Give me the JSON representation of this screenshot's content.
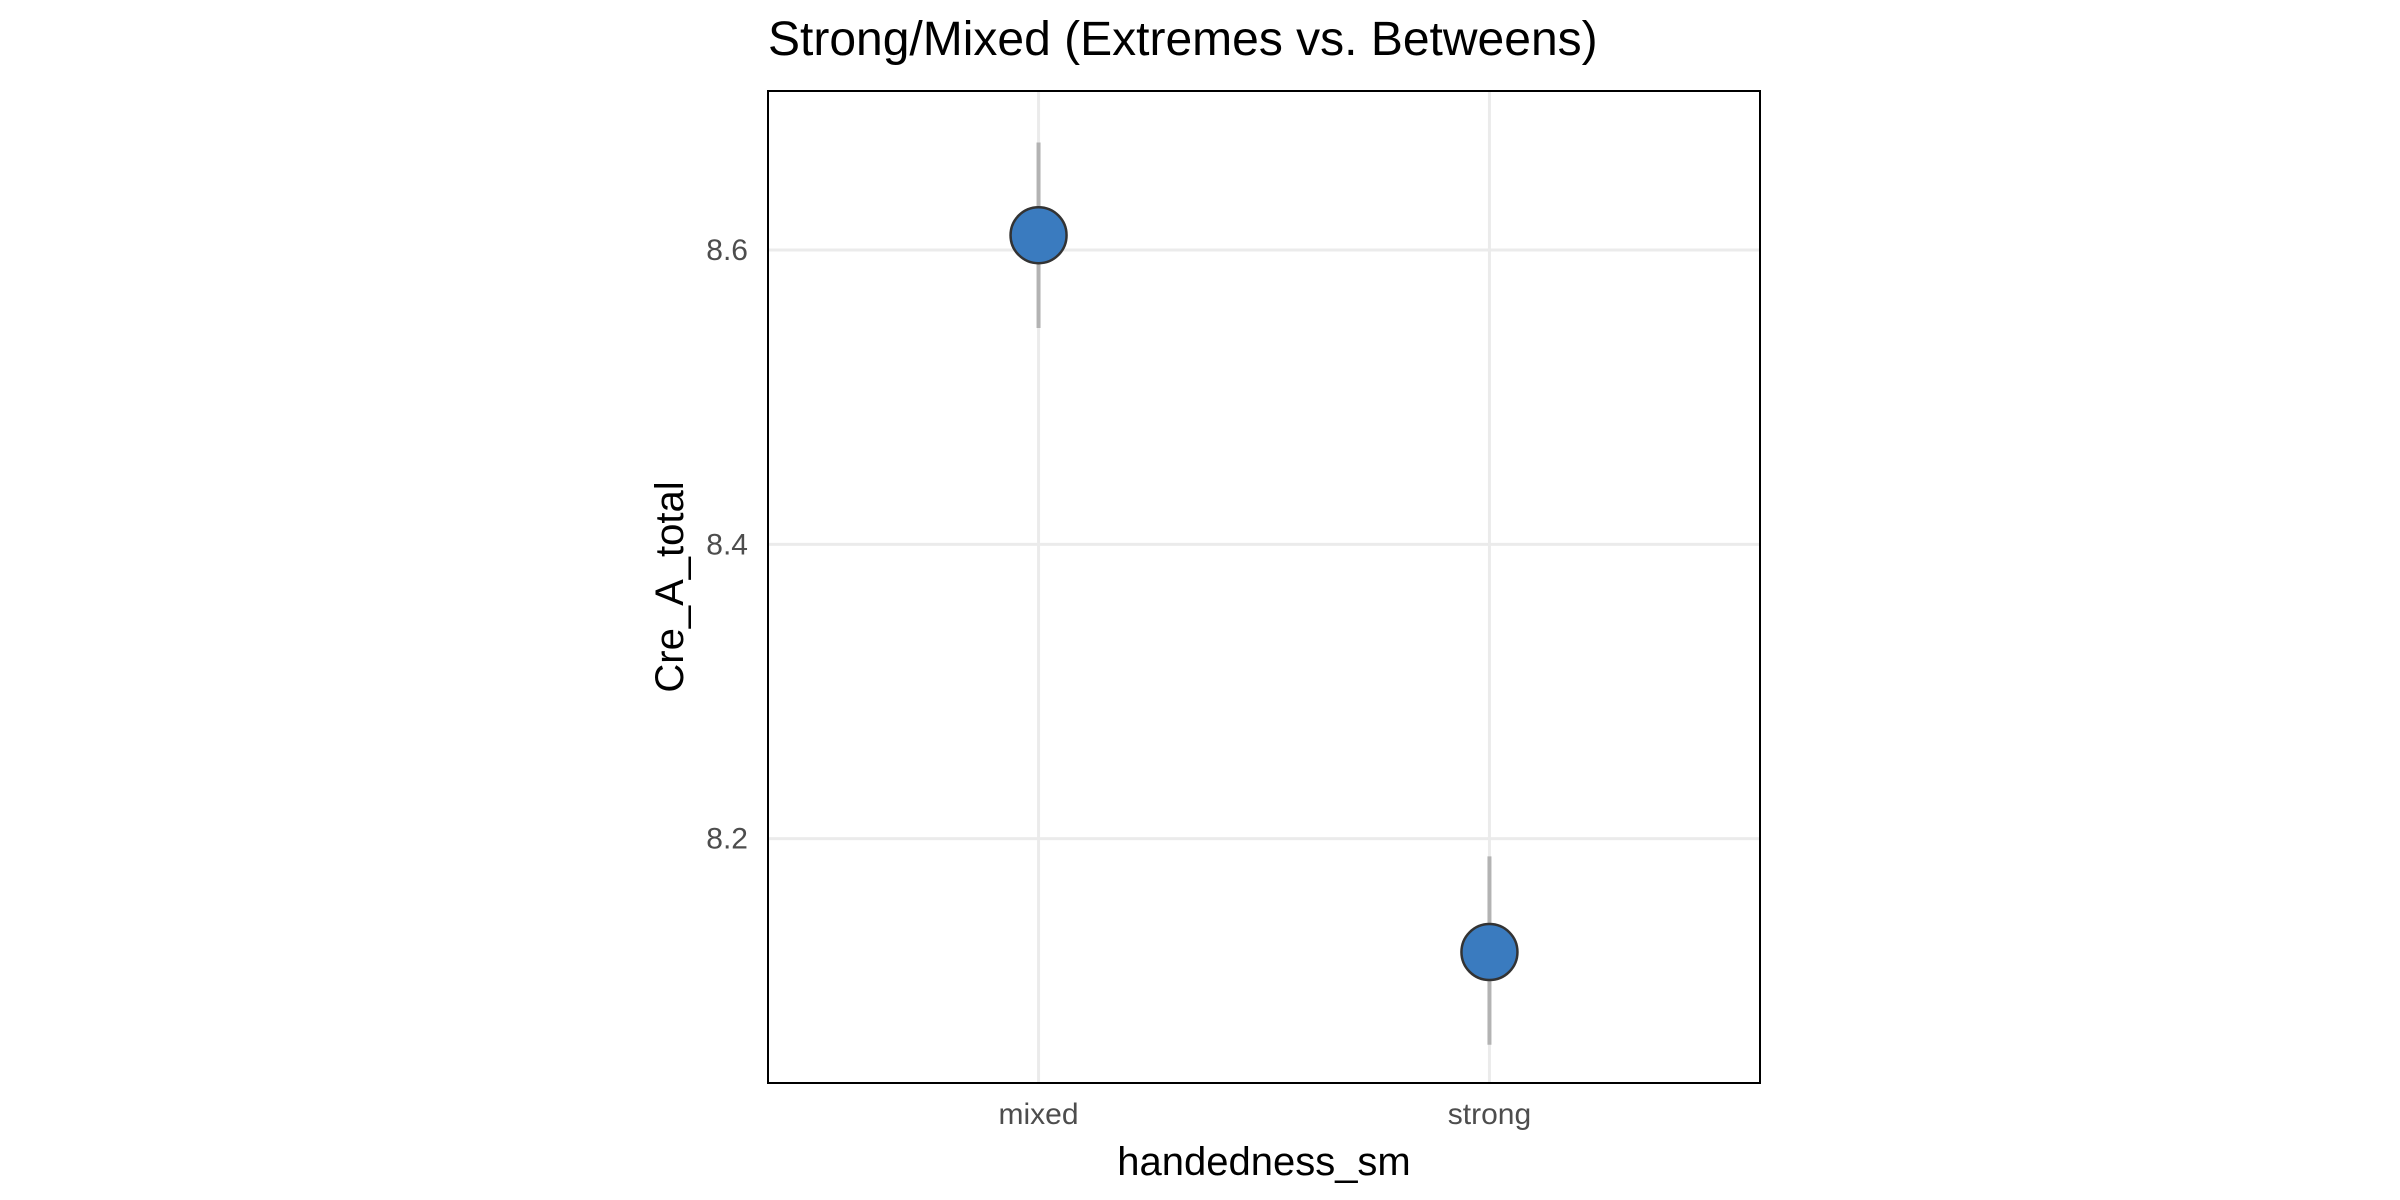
{
  "chart_data": {
    "type": "scatter",
    "title": "Strong/Mixed (Extremes vs. Betweens)",
    "xlabel": "handedness_sm",
    "ylabel": "Cre_A_total",
    "categories": [
      "mixed",
      "strong"
    ],
    "values": [
      8.61,
      8.123
    ],
    "error_low": [
      8.547,
      8.06
    ],
    "error_high": [
      8.673,
      8.188
    ],
    "ylim": [
      8.034,
      8.708
    ],
    "yticks": [
      "8.2",
      "8.4",
      "8.6"
    ],
    "ytick_values": [
      8.2,
      8.4,
      8.6
    ],
    "grid": true,
    "colors": {
      "point_fill": "#3a7bbf",
      "point_stroke": "#333333",
      "error_bar": "#b3b3b3",
      "grid": "#ebebeb",
      "border": "#000000"
    }
  }
}
